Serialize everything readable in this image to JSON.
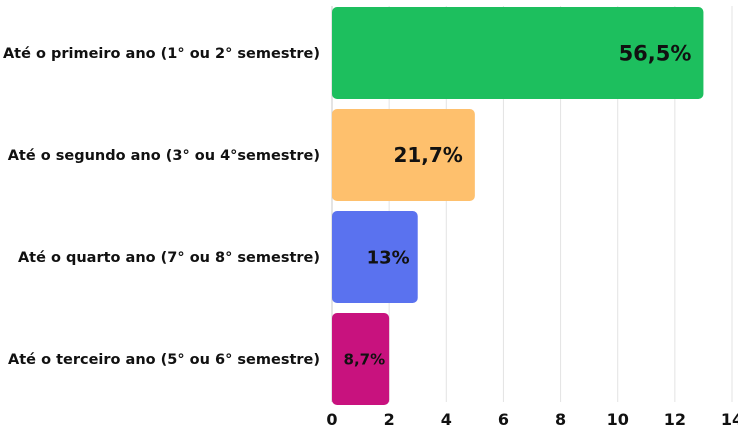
{
  "chart_data": {
    "type": "bar",
    "orientation": "horizontal",
    "categories": [
      "Até o primeiro ano (1° ou 2° semestre)",
      "Até o segundo ano (3° ou 4°semestre)",
      "Até o quarto ano (7° ou 8° semestre)",
      "Até o terceiro ano (5° ou 6° semestre)"
    ],
    "values": [
      13,
      5,
      3,
      2
    ],
    "data_labels": [
      "56,5%",
      "21,7%",
      "13%",
      "8,7%"
    ],
    "colors": [
      "#1dbf5e",
      "#fec06d",
      "#5a72ef",
      "#c8127e"
    ],
    "xlim": [
      0,
      14
    ],
    "xticks": [
      "0",
      "2",
      "4",
      "6",
      "8",
      "10",
      "12",
      "14"
    ],
    "grid": "vertical",
    "title": "",
    "xlabel": "",
    "ylabel": ""
  }
}
